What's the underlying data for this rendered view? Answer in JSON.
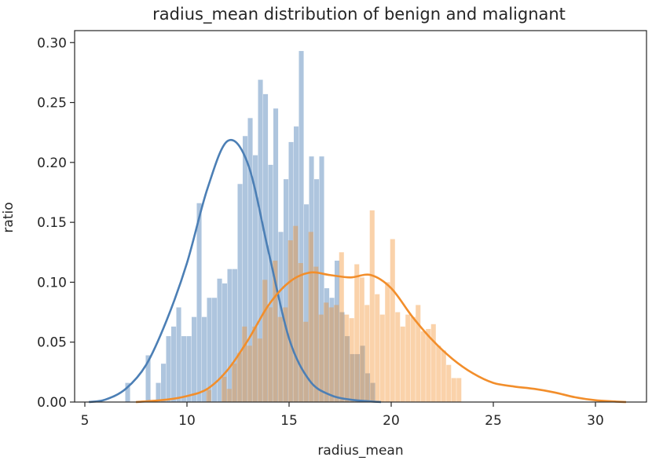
{
  "chart_data": {
    "type": "histogram",
    "title": "radius_mean distribution of benign and malignant",
    "xlabel": "radius_mean",
    "ylabel": "ratio",
    "xlim": [
      4.5,
      32.5
    ],
    "ylim": [
      0,
      0.31
    ],
    "xticks": [
      5,
      10,
      15,
      20,
      25,
      30
    ],
    "yticks": [
      0.0,
      0.05,
      0.1,
      0.15,
      0.2,
      0.25,
      0.3
    ],
    "ytick_labels": [
      "0.00",
      "0.05",
      "0.10",
      "0.15",
      "0.20",
      "0.25",
      "0.30"
    ],
    "grid": false,
    "legend": "none",
    "series": [
      {
        "color": "#4c7fb5",
        "bar_opacity": 0.45,
        "bin_start": 6.98,
        "bin_width": 0.25,
        "values": [
          0.016,
          0,
          0,
          0,
          0.039,
          0,
          0.016,
          0.032,
          0.055,
          0.063,
          0.079,
          0.055,
          0.055,
          0.071,
          0.166,
          0.071,
          0.087,
          0.087,
          0.103,
          0.099,
          0.111,
          0.111,
          0.182,
          0.222,
          0.237,
          0.206,
          0.269,
          0.257,
          0.198,
          0.245,
          0.142,
          0.186,
          0.217,
          0.23,
          0.293,
          0.165,
          0.205,
          0.186,
          0.205,
          0.095,
          0.087,
          0.118,
          0.075,
          0.055,
          0.04,
          0.04,
          0.047,
          0.024,
          0.016,
          0.0
        ],
        "kde_x": [
          5.2,
          6,
          7,
          8,
          9,
          10,
          11,
          12,
          13,
          14,
          15,
          16,
          17,
          18,
          19,
          19.5
        ],
        "kde_y": [
          0,
          0.002,
          0.011,
          0.031,
          0.068,
          0.116,
          0.178,
          0.218,
          0.198,
          0.125,
          0.053,
          0.018,
          0.006,
          0.002,
          0.0005,
          0
        ]
      },
      {
        "color": "#f28e2b",
        "bar_opacity": 0.4,
        "bin_start": 10.95,
        "bin_width": 0.25,
        "values": [
          0.01,
          0,
          0,
          0.021,
          0.011,
          0.032,
          0.041,
          0.063,
          0.047,
          0.063,
          0.053,
          0.102,
          0.079,
          0.118,
          0.071,
          0.079,
          0.135,
          0.147,
          0.116,
          0.067,
          0.142,
          0.113,
          0.073,
          0.083,
          0.079,
          0.081,
          0.125,
          0.073,
          0.07,
          0.115,
          0.104,
          0.081,
          0.16,
          0.09,
          0.073,
          0.1,
          0.136,
          0.075,
          0.063,
          0.073,
          0.071,
          0.081,
          0.059,
          0.061,
          0.065,
          0.047,
          0.043,
          0.031,
          0.02,
          0.02
        ],
        "kde_x": [
          7.5,
          9,
          10,
          11,
          12,
          13,
          14,
          15,
          16,
          17,
          18,
          19,
          20,
          21,
          22,
          23,
          24,
          25,
          26,
          27,
          28,
          29,
          30,
          31,
          31.5
        ],
        "kde_y": [
          0,
          0.002,
          0.005,
          0.011,
          0.027,
          0.052,
          0.081,
          0.1,
          0.108,
          0.106,
          0.104,
          0.106,
          0.095,
          0.072,
          0.052,
          0.036,
          0.024,
          0.016,
          0.013,
          0.011,
          0.008,
          0.004,
          0.0015,
          0.0004,
          0
        ]
      }
    ]
  }
}
